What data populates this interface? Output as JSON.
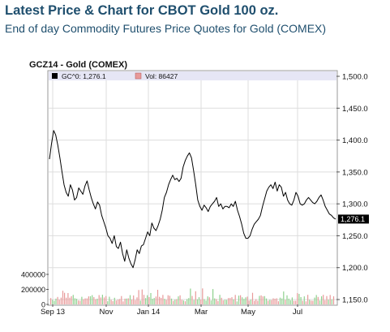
{
  "page": {
    "title": "Latest Price & Chart for CBOT Gold 100 oz.",
    "subtitle": "End of day Commodity Futures Price Quotes for Gold (COMEX)"
  },
  "chart_data": {
    "type": "line",
    "title": "GCZ14 - Gold (COMEX)",
    "legend": {
      "price_label": "GC^0: 1,276.1",
      "volume_label": "Vol: 86427",
      "placement": "top-left"
    },
    "last_price_label": "1,276.1",
    "last_price": 1276.1,
    "price_axis": {
      "side": "right",
      "ylim": [
        1150,
        1500
      ],
      "ticks": [
        1150,
        1200,
        1250,
        1300,
        1350,
        1400,
        1450,
        1500
      ],
      "tick_labels": [
        "1,150.0",
        "1,200.0",
        "1,250.0",
        "1,300.0",
        "1,350.0",
        "1,400.0",
        "1,450.0",
        "1,500.0"
      ]
    },
    "volume_axis": {
      "side": "left",
      "ylim": [
        0,
        500000
      ],
      "ticks": [
        0,
        200000,
        400000
      ],
      "tick_labels": [
        "0",
        "200000",
        "400000"
      ]
    },
    "x_axis": {
      "labels": [
        "Sep 13",
        "Nov",
        "Jan 14",
        "Mar",
        "May",
        "Jul"
      ]
    },
    "grid": true,
    "colors": {
      "price_line": "#000000",
      "volume_up": "#8fd18f",
      "volume_down": "#e89a9a",
      "legend_bg": "#e6e6f5",
      "grid": "#dddddd",
      "last_price_bg": "#000000",
      "last_price_text": "#ffffff"
    },
    "price_series": [
      1370,
      1395,
      1415,
      1408,
      1392,
      1372,
      1350,
      1330,
      1318,
      1312,
      1330,
      1322,
      1306,
      1310,
      1325,
      1320,
      1315,
      1328,
      1336,
      1322,
      1310,
      1300,
      1292,
      1303,
      1298,
      1282,
      1272,
      1262,
      1250,
      1246,
      1238,
      1250,
      1233,
      1230,
      1240,
      1222,
      1210,
      1228,
      1215,
      1206,
      1200,
      1212,
      1228,
      1222,
      1234,
      1236,
      1246,
      1256,
      1250,
      1270,
      1262,
      1258,
      1266,
      1276,
      1290,
      1310,
      1318,
      1330,
      1338,
      1345,
      1338,
      1340,
      1335,
      1340,
      1358,
      1368,
      1375,
      1380,
      1372,
      1352,
      1330,
      1306,
      1296,
      1290,
      1298,
      1294,
      1288,
      1296,
      1300,
      1304,
      1310,
      1296,
      1300,
      1292,
      1296,
      1296,
      1294,
      1300,
      1296,
      1304,
      1290,
      1280,
      1268,
      1254,
      1246,
      1246,
      1250,
      1260,
      1268,
      1272,
      1276,
      1282,
      1296,
      1308,
      1320,
      1326,
      1330,
      1324,
      1334,
      1320,
      1330,
      1326,
      1312,
      1318,
      1306,
      1300,
      1298,
      1306,
      1318,
      1312,
      1300,
      1298,
      1300,
      1306,
      1310,
      1306,
      1302,
      1300,
      1304,
      1310,
      1314,
      1306,
      1296,
      1290,
      1284,
      1282,
      1278,
      1276.1
    ]
  }
}
